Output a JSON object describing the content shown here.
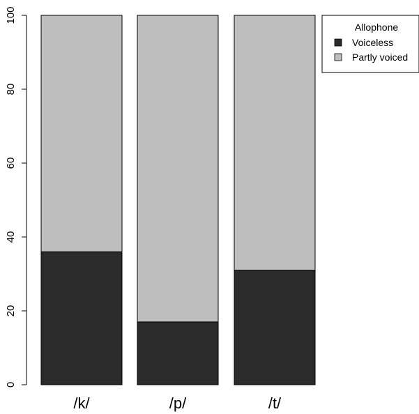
{
  "chart_data": {
    "type": "bar",
    "stacked": true,
    "categories": [
      "/k/",
      "/p/",
      "/t/"
    ],
    "series": [
      {
        "name": "Voiceless",
        "values": [
          36,
          17,
          31
        ],
        "color": "#2b2b2b"
      },
      {
        "name": "Partly voiced",
        "values": [
          64,
          83,
          69
        ],
        "color": "#bebebe"
      }
    ],
    "title": "",
    "xlabel": "",
    "ylabel": "",
    "ylim": [
      0,
      100
    ],
    "yticks": [
      0,
      20,
      40,
      60,
      80,
      100
    ],
    "ytick_labels": [
      "0",
      "20",
      "40",
      "60",
      "80",
      "100"
    ],
    "grid": false,
    "legend": {
      "title": "Allophone",
      "placement": "top-right",
      "entries": [
        "Voiceless",
        "Partly voiced"
      ]
    }
  }
}
